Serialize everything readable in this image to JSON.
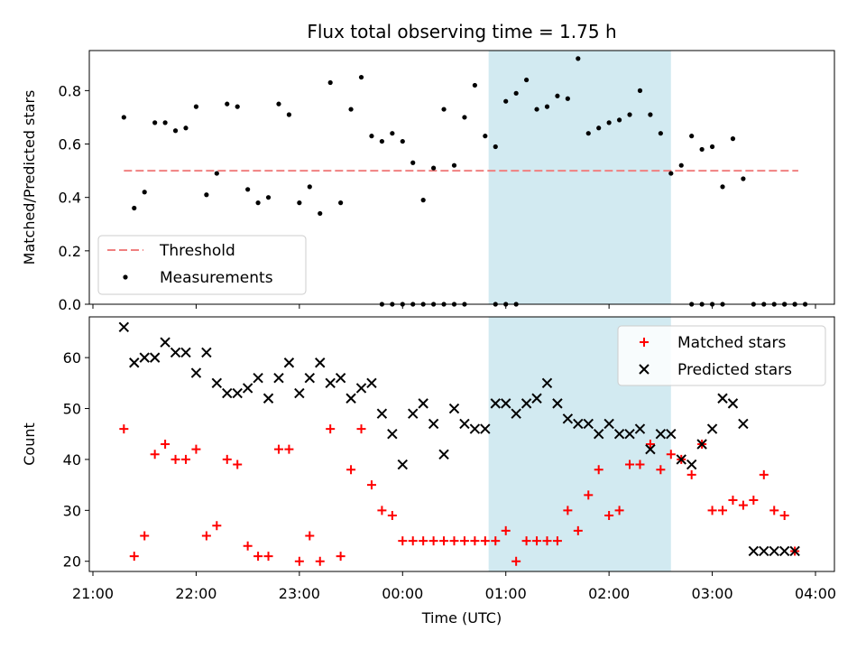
{
  "title": "Flux total observing time = 1.75 h",
  "chart_data": [
    {
      "type": "scatter",
      "ylabel": "Matched/Predicted stars",
      "xlabel": "",
      "ylim": [
        0,
        0.95
      ],
      "yticks": [
        0.0,
        0.2,
        0.4,
        0.6,
        0.8
      ],
      "ytick_labels": [
        "0.0",
        "0.2",
        "0.4",
        "0.6",
        "0.8"
      ],
      "shaded_interval": [
        "00:50",
        "02:36"
      ],
      "shaded_color": "#add8e6",
      "legend_position": "lower-left",
      "threshold": {
        "name": "Threshold",
        "value": 0.5,
        "x_range": [
          "21:18",
          "03:50"
        ],
        "color": "#f08080",
        "style": "dashed"
      },
      "series": [
        {
          "name": "Measurements",
          "marker": "dot",
          "color": "#000000",
          "x": [
            "21:18",
            "21:24",
            "21:30",
            "21:36",
            "21:42",
            "21:48",
            "21:54",
            "22:00",
            "22:06",
            "22:12",
            "22:18",
            "22:24",
            "22:30",
            "22:36",
            "22:42",
            "22:48",
            "22:54",
            "23:00",
            "23:06",
            "23:12",
            "23:18",
            "23:24",
            "23:30",
            "23:36",
            "23:42",
            "23:48",
            "23:54",
            "00:00",
            "00:06",
            "00:12",
            "00:18",
            "00:24",
            "00:30",
            "00:36",
            "00:42",
            "00:48",
            "00:54",
            "01:00",
            "01:06",
            "01:12",
            "01:18",
            "01:24",
            "01:30",
            "01:36",
            "01:42",
            "01:48",
            "01:54",
            "02:00",
            "02:06",
            "02:12",
            "02:18",
            "02:24",
            "02:30",
            "02:36",
            "02:42",
            "02:48",
            "02:54",
            "03:00",
            "03:06",
            "03:12",
            "03:18",
            "03:24",
            "03:30",
            "03:36",
            "03:42",
            "03:48"
          ],
          "y": [
            0.7,
            0.36,
            0.42,
            0.68,
            0.68,
            0.65,
            0.66,
            0.74,
            0.41,
            0.49,
            0.75,
            0.74,
            0.43,
            0.38,
            0.4,
            0.75,
            0.71,
            0.38,
            0.44,
            0.34,
            0.83,
            0.38,
            0.73,
            0.85,
            0.63,
            0.61,
            0.64,
            0.61,
            0.53,
            0.39,
            0.51,
            0.73,
            0.52,
            0.7,
            0.82,
            0.63,
            0.59,
            0.76,
            0.79,
            0.84,
            0.73,
            0.74,
            0.78,
            0.77,
            0.92,
            0.64,
            0.66,
            0.68,
            0.69,
            0.71,
            0.8,
            0.71,
            0.64,
            0.49,
            0.52,
            0.63,
            0.58,
            0.59,
            0.44,
            0.62,
            0.47,
            0.0,
            0.0,
            0.0,
            0.0,
            0.0
          ]
        },
        {
          "name": "",
          "marker": "dot",
          "color": "#000000",
          "x": [
            "23:48",
            "23:54",
            "00:00",
            "00:06",
            "00:12",
            "00:18",
            "00:24",
            "00:30",
            "00:36",
            "00:54",
            "01:00",
            "01:06",
            "02:48",
            "02:54",
            "03:00",
            "03:06",
            "03:42",
            "03:48",
            "03:54"
          ],
          "y": [
            0,
            0,
            0,
            0,
            0,
            0,
            0,
            0,
            0,
            0,
            0,
            0,
            0,
            0,
            0,
            0,
            0,
            0,
            0
          ]
        }
      ]
    },
    {
      "type": "scatter",
      "ylabel": "Count",
      "xlabel": "Time (UTC)",
      "ylim": [
        18,
        68
      ],
      "yticks": [
        20,
        30,
        40,
        50,
        60
      ],
      "ytick_labels": [
        "20",
        "30",
        "40",
        "50",
        "60"
      ],
      "xticks": [
        "21:00",
        "22:00",
        "23:00",
        "00:00",
        "01:00",
        "02:00",
        "03:00",
        "04:00"
      ],
      "shaded_interval": [
        "00:50",
        "02:36"
      ],
      "shaded_color": "#add8e6",
      "legend_position": "top-right",
      "series": [
        {
          "name": "Matched stars",
          "marker": "plus",
          "color": "#ff0000",
          "x": [
            "21:18",
            "21:24",
            "21:30",
            "21:36",
            "21:42",
            "21:48",
            "21:54",
            "22:00",
            "22:06",
            "22:12",
            "22:18",
            "22:24",
            "22:30",
            "22:36",
            "22:42",
            "22:48",
            "22:54",
            "23:00",
            "23:06",
            "23:12",
            "23:18",
            "23:24",
            "23:30",
            "23:36",
            "23:42",
            "23:48",
            "23:54",
            "00:00",
            "00:06",
            "00:12",
            "00:18",
            "00:24",
            "00:30",
            "00:36",
            "00:42",
            "00:48",
            "00:54",
            "01:00",
            "01:06",
            "01:12",
            "01:18",
            "01:24",
            "01:30",
            "01:36",
            "01:42",
            "01:48",
            "01:54",
            "02:00",
            "02:06",
            "02:12",
            "02:18",
            "02:24",
            "02:30",
            "02:36",
            "02:42",
            "02:48",
            "02:54",
            "03:00",
            "03:06",
            "03:12",
            "03:18",
            "03:24",
            "03:30",
            "03:36",
            "03:42",
            "03:48"
          ],
          "y": [
            46,
            21,
            25,
            41,
            43,
            40,
            40,
            42,
            25,
            27,
            40,
            39,
            23,
            21,
            21,
            42,
            42,
            20,
            25,
            20,
            46,
            21,
            38,
            46,
            35,
            30,
            29,
            24,
            24,
            24,
            24,
            24,
            24,
            24,
            24,
            24,
            24,
            26,
            20,
            24,
            24,
            24,
            24,
            30,
            26,
            33,
            38,
            29,
            30,
            39,
            39,
            43,
            38,
            41,
            40,
            37,
            43,
            30,
            30,
            32,
            31,
            32,
            37,
            30,
            29,
            22
          ]
        },
        {
          "name": "Predicted stars",
          "marker": "x",
          "color": "#000000",
          "x": [
            "21:18",
            "21:24",
            "21:30",
            "21:36",
            "21:42",
            "21:48",
            "21:54",
            "22:00",
            "22:06",
            "22:12",
            "22:18",
            "22:24",
            "22:30",
            "22:36",
            "22:42",
            "22:48",
            "22:54",
            "23:00",
            "23:06",
            "23:12",
            "23:18",
            "23:24",
            "23:30",
            "23:36",
            "23:42",
            "23:48",
            "23:54",
            "00:00",
            "00:06",
            "00:12",
            "00:18",
            "00:24",
            "00:30",
            "00:36",
            "00:42",
            "00:48",
            "00:54",
            "01:00",
            "01:06",
            "01:12",
            "01:18",
            "01:24",
            "01:30",
            "01:36",
            "01:42",
            "01:48",
            "01:54",
            "02:00",
            "02:06",
            "02:12",
            "02:18",
            "02:24",
            "02:30",
            "02:36",
            "02:42",
            "02:48",
            "02:54",
            "03:00",
            "03:06",
            "03:12",
            "03:18",
            "03:24",
            "03:30",
            "03:36",
            "03:42",
            "03:48"
          ],
          "y": [
            66,
            59,
            60,
            60,
            63,
            61,
            61,
            57,
            61,
            55,
            53,
            53,
            54,
            56,
            52,
            56,
            59,
            53,
            56,
            59,
            55,
            56,
            52,
            54,
            55,
            49,
            45,
            39,
            49,
            51,
            47,
            41,
            50,
            47,
            46,
            46,
            51,
            51,
            49,
            51,
            52,
            55,
            51,
            48,
            47,
            47,
            45,
            47,
            45,
            45,
            46,
            42,
            45,
            45,
            40,
            39,
            43,
            46,
            52,
            51,
            47,
            22,
            22,
            22,
            22,
            22
          ]
        }
      ]
    }
  ]
}
